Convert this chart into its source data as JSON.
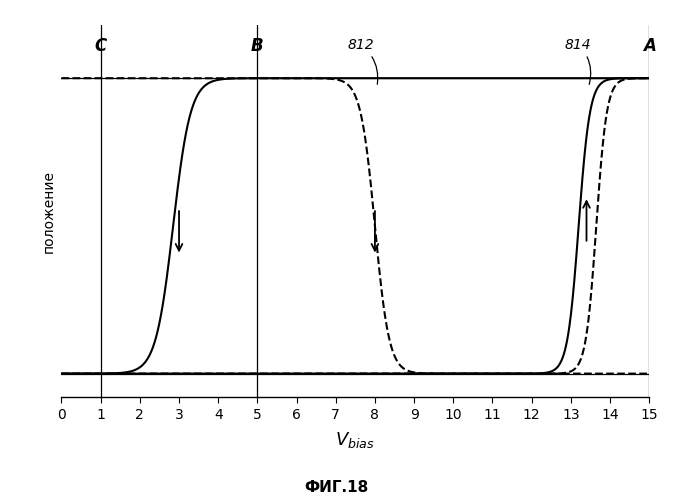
{
  "title": "",
  "xlabel_main": "V",
  "xlabel_sub": "bias",
  "ylabel": "положение",
  "fig_caption": "ФИГ.18",
  "xlim": [
    0,
    15
  ],
  "ylim_low": -0.08,
  "ylim_high": 1.18,
  "xticks": [
    0,
    1,
    2,
    3,
    4,
    5,
    6,
    7,
    8,
    9,
    10,
    11,
    12,
    13,
    14,
    15
  ],
  "upper_line_y": 1.0,
  "lower_line_y": 0.0,
  "vline_A": 15,
  "vline_B": 5,
  "vline_C": 1,
  "label_A": "A",
  "label_B": "B",
  "label_C": "C",
  "label_812": "812",
  "label_814": "814",
  "background_color": "#ffffff"
}
